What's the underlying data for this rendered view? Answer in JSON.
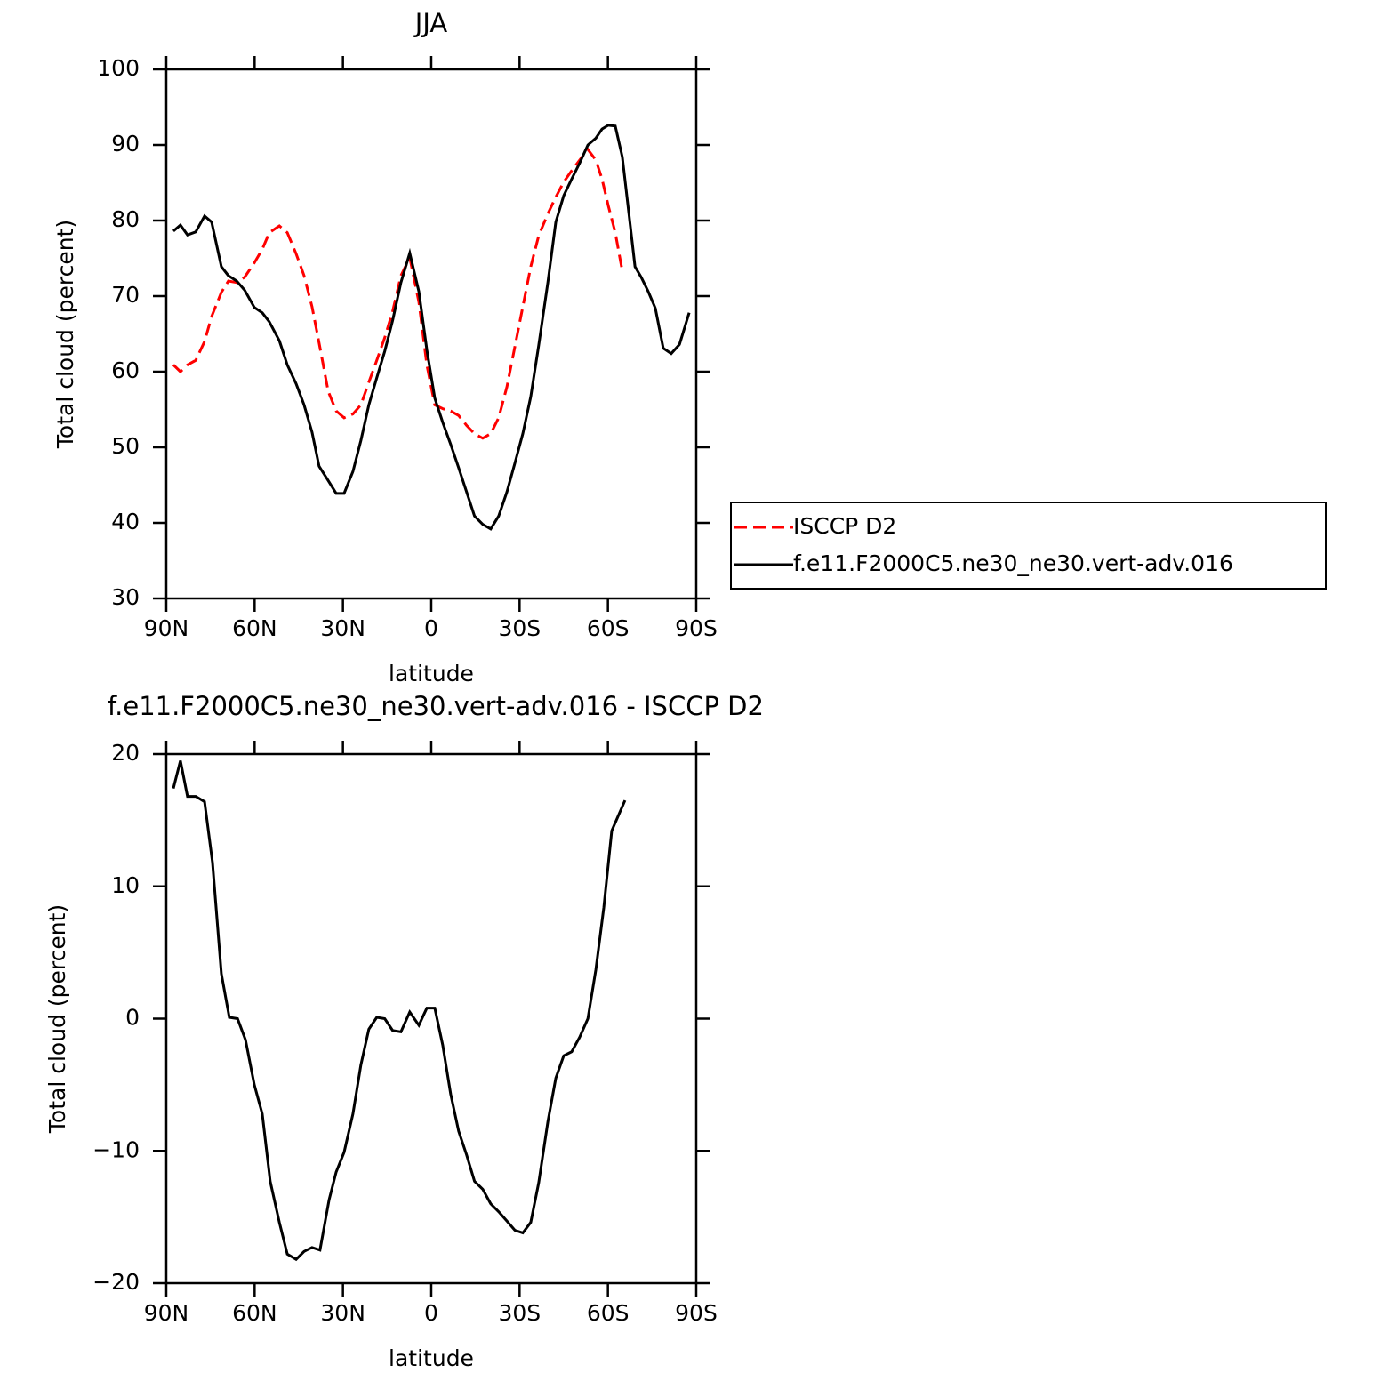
{
  "chart_data": [
    {
      "type": "line",
      "title": "JJA",
      "xlabel": "latitude",
      "ylabel": "Total cloud (percent)",
      "x": [
        87.6,
        85.2,
        82.8,
        80.0,
        77.0,
        74.6,
        71.3,
        68.9,
        66.1,
        63.4,
        60.1,
        57.4,
        55.0,
        51.6,
        48.9,
        45.9,
        43.2,
        40.5,
        38.1,
        35.0,
        32.3,
        29.6,
        26.6,
        23.9,
        21.2,
        18.5,
        15.8,
        13.1,
        10.3,
        7.3,
        4.2,
        1.5,
        -1.2,
        -3.9,
        -6.6,
        -9.3,
        -12.0,
        -14.7,
        -17.5,
        -20.2,
        -22.9,
        -25.7,
        -28.4,
        -31.1,
        -33.8,
        -36.5,
        -39.6,
        -42.3,
        -45.0,
        -47.7,
        -50.4,
        -53.2,
        -55.9,
        -58.0,
        -60.1,
        -62.5,
        -64.9,
        -67.1,
        -69.2,
        -71.3,
        -73.7,
        -76.1,
        -78.8,
        -81.5,
        -84.3,
        -87.6
      ],
      "series": [
        {
          "name": "ISCCP D2",
          "color": "#ff0000",
          "dash": "dashed",
          "values": [
            60.9,
            60.0,
            60.9,
            61.5,
            64.0,
            67.3,
            70.5,
            72.0,
            71.8,
            72.5,
            74.4,
            76.2,
            78.4,
            79.3,
            78.4,
            75.6,
            72.7,
            68.6,
            63.8,
            57.4,
            54.8,
            53.9,
            54.4,
            55.6,
            58.6,
            61.5,
            64.5,
            68.0,
            72.7,
            75.1,
            69.2,
            60.9,
            55.6,
            55.1,
            54.8,
            54.2,
            52.9,
            51.8,
            51.2,
            51.8,
            53.9,
            58.0,
            63.3,
            68.6,
            73.9,
            78.0,
            80.9,
            83.1,
            85.1,
            86.6,
            88.0,
            89.4,
            88.0,
            85.5,
            82.0,
            78.4,
            73.3,
            null,
            null,
            null,
            null,
            null,
            null,
            null,
            null,
            null
          ]
        },
        {
          "name": "f.e11.F2000C5.ne30_ne30.vert-adv.016",
          "color": "#000000",
          "dash": "solid",
          "values": [
            78.6,
            79.4,
            78.1,
            78.5,
            80.6,
            79.8,
            73.9,
            72.7,
            72.0,
            70.8,
            68.5,
            67.8,
            66.6,
            64.1,
            60.9,
            58.4,
            55.6,
            52.0,
            47.5,
            45.6,
            43.9,
            43.9,
            46.8,
            50.9,
            55.6,
            59.2,
            62.7,
            66.8,
            71.8,
            75.7,
            70.6,
            62.9,
            56.5,
            53.3,
            50.4,
            47.3,
            44.1,
            40.9,
            39.8,
            39.2,
            40.9,
            44.1,
            47.9,
            51.8,
            56.7,
            63.5,
            71.8,
            79.8,
            83.3,
            85.5,
            87.6,
            90.0,
            90.9,
            92.1,
            92.6,
            92.5,
            88.4,
            81.0,
            73.9,
            72.5,
            70.6,
            68.4,
            63.1,
            62.4,
            63.6,
            67.8
          ]
        }
      ],
      "xlim": [
        90,
        -90
      ],
      "xticks": [
        {
          "value": 90,
          "label": "90N"
        },
        {
          "value": 60,
          "label": "60N"
        },
        {
          "value": 30,
          "label": "30N"
        },
        0,
        {
          "value": -30,
          "label": "30S"
        },
        {
          "value": -60,
          "label": "60S"
        },
        {
          "value": -90,
          "label": "90S"
        }
      ],
      "ylim": [
        30,
        100
      ],
      "yticks": [
        30,
        40,
        50,
        60,
        70,
        80,
        90,
        100
      ],
      "legend": "right"
    },
    {
      "type": "line",
      "title": "f.e11.F2000C5.ne30_ne30.vert-adv.016 - ISCCP D2",
      "xlabel": "latitude",
      "ylabel": "Total cloud (percent)",
      "x": [
        87.6,
        85.2,
        82.8,
        80.0,
        77.0,
        74.3,
        71.3,
        68.6,
        65.8,
        63.1,
        60.1,
        57.4,
        54.7,
        51.6,
        48.9,
        45.9,
        43.2,
        40.5,
        37.8,
        34.7,
        32.3,
        29.6,
        26.6,
        23.9,
        21.2,
        18.5,
        15.8,
        13.1,
        10.3,
        7.3,
        4.2,
        1.5,
        -1.2,
        -3.9,
        -6.6,
        -9.3,
        -12.0,
        -14.7,
        -17.5,
        -20.2,
        -22.9,
        -25.7,
        -28.4,
        -31.1,
        -33.8,
        -36.5,
        -39.6,
        -42.3,
        -45.0,
        -47.7,
        -50.4,
        -53.2,
        -55.9,
        -58.6,
        -61.3,
        -65.8
      ],
      "color": "#000000",
      "values": [
        17.4,
        19.5,
        16.8,
        16.8,
        16.4,
        11.8,
        3.4,
        0.1,
        0.0,
        -1.6,
        -5.0,
        -7.2,
        -12.3,
        -15.4,
        -17.8,
        -18.2,
        -17.6,
        -17.3,
        -17.5,
        -13.7,
        -11.6,
        -10.1,
        -7.2,
        -3.5,
        -0.8,
        0.1,
        0.0,
        -0.9,
        -1.0,
        0.5,
        -0.5,
        0.8,
        0.8,
        -2.0,
        -5.7,
        -8.5,
        -10.3,
        -12.3,
        -12.9,
        -14.0,
        -14.6,
        -15.3,
        -16.0,
        -16.2,
        -15.4,
        -12.4,
        -7.8,
        -4.5,
        -2.8,
        -2.5,
        -1.4,
        0.0,
        3.7,
        8.4,
        14.2,
        16.5
      ],
      "xlim": [
        90,
        -90
      ],
      "xticks": [
        {
          "value": 90,
          "label": "90N"
        },
        {
          "value": 60,
          "label": "60N"
        },
        {
          "value": 30,
          "label": "30N"
        },
        0,
        {
          "value": -30,
          "label": "30S"
        },
        {
          "value": -60,
          "label": "60S"
        },
        {
          "value": -90,
          "label": "90S"
        }
      ],
      "ylim": [
        -20,
        20
      ],
      "yticks": [
        {
          "value": -20,
          "label": "−20"
        },
        {
          "value": -10,
          "label": "−10"
        },
        0,
        10,
        20
      ]
    }
  ]
}
